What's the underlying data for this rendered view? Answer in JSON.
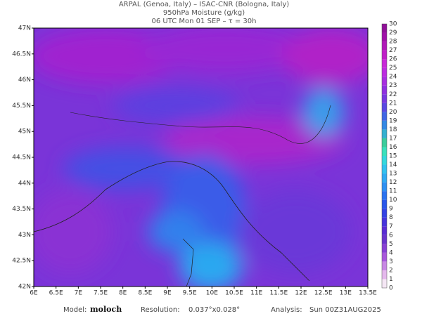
{
  "header": {
    "lines": [
      "ARPAL (Genoa, Italy)  –  ISAC-CNR (Bologna, Italy)",
      "950hPa Moisture (g/kg)",
      "06 UTC Mon 01 SEP  –  τ = 30h"
    ]
  },
  "map": {
    "lat_labels": [
      "47N",
      "46.5N",
      "46N",
      "45.5N",
      "45N",
      "44.5N",
      "44N",
      "43.5N",
      "43N",
      "42.5N",
      "42N"
    ],
    "lon_labels": [
      "6E",
      "6.5E",
      "7E",
      "7.5E",
      "8E",
      "8.5E",
      "9E",
      "9.5E",
      "10E",
      "10.5E",
      "11E",
      "11.5E",
      "12E",
      "12.5E",
      "13E",
      "13.5E"
    ]
  },
  "colorbar": {
    "labels": [
      0,
      1,
      2,
      3,
      4,
      5,
      6,
      7,
      8,
      9,
      10,
      11,
      12,
      13,
      14,
      15,
      16,
      17,
      18,
      19,
      20,
      21,
      22,
      23,
      24,
      25,
      26,
      27,
      28,
      29,
      30
    ],
    "colors": [
      "#f4e6f4",
      "#e4b8ec",
      "#c888e4",
      "#a858dc",
      "#8840d4",
      "#6a34cc",
      "#5a2cd4",
      "#4634dc",
      "#3442e4",
      "#2a56ea",
      "#2a72f0",
      "#2e90f2",
      "#30aaf2",
      "#32c2ee",
      "#34d8dc",
      "#3ae0bc",
      "#3ccc9c",
      "#34b0d0",
      "#3488e4",
      "#4066e4",
      "#5a48e2",
      "#7838e0",
      "#9030e0",
      "#a82ee0",
      "#bc2ce0",
      "#c828d8",
      "#c020c8",
      "#b018b8",
      "#a010a8",
      "#901098"
    ]
  },
  "footer": {
    "model_label": "Model:",
    "model": "moloch",
    "resolution_label": "Resolution:",
    "resolution": "0.037°x0.028°",
    "analysis_label": "Analysis:",
    "analysis": "Sun 00Z31AUG2025"
  }
}
